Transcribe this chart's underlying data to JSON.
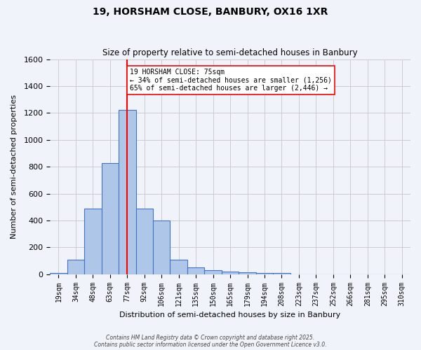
{
  "title1": "19, HORSHAM CLOSE, BANBURY, OX16 1XR",
  "title2": "Size of property relative to semi-detached houses in Banbury",
  "xlabel": "Distribution of semi-detached houses by size in Banbury",
  "ylabel": "Number of semi-detached properties",
  "bin_labels": [
    "19sqm",
    "34sqm",
    "48sqm",
    "63sqm",
    "77sqm",
    "92sqm",
    "106sqm",
    "121sqm",
    "135sqm",
    "150sqm",
    "165sqm",
    "179sqm",
    "194sqm",
    "208sqm",
    "223sqm",
    "237sqm",
    "252sqm",
    "266sqm",
    "281sqm",
    "295sqm",
    "310sqm"
  ],
  "bar_values": [
    10,
    110,
    490,
    825,
    1225,
    490,
    400,
    110,
    50,
    30,
    20,
    15,
    10,
    10,
    0,
    0,
    0,
    0,
    0,
    0,
    0
  ],
  "bar_color": "#aec6e8",
  "bar_edge_color": "#4472c4",
  "property_bin_index": 4,
  "vline_color": "red",
  "annotation_text": "19 HORSHAM CLOSE: 75sqm\n← 34% of semi-detached houses are smaller (1,256)\n65% of semi-detached houses are larger (2,446) →",
  "annotation_box_color": "white",
  "annotation_box_edge_color": "red",
  "ylim": [
    0,
    1600
  ],
  "yticks": [
    0,
    200,
    400,
    600,
    800,
    1000,
    1200,
    1400,
    1600
  ],
  "grid_color": "#cccccc",
  "background_color": "#f0f4fa",
  "footer1": "Contains HM Land Registry data © Crown copyright and database right 2025.",
  "footer2": "Contains public sector information licensed under the Open Government Licence v3.0."
}
